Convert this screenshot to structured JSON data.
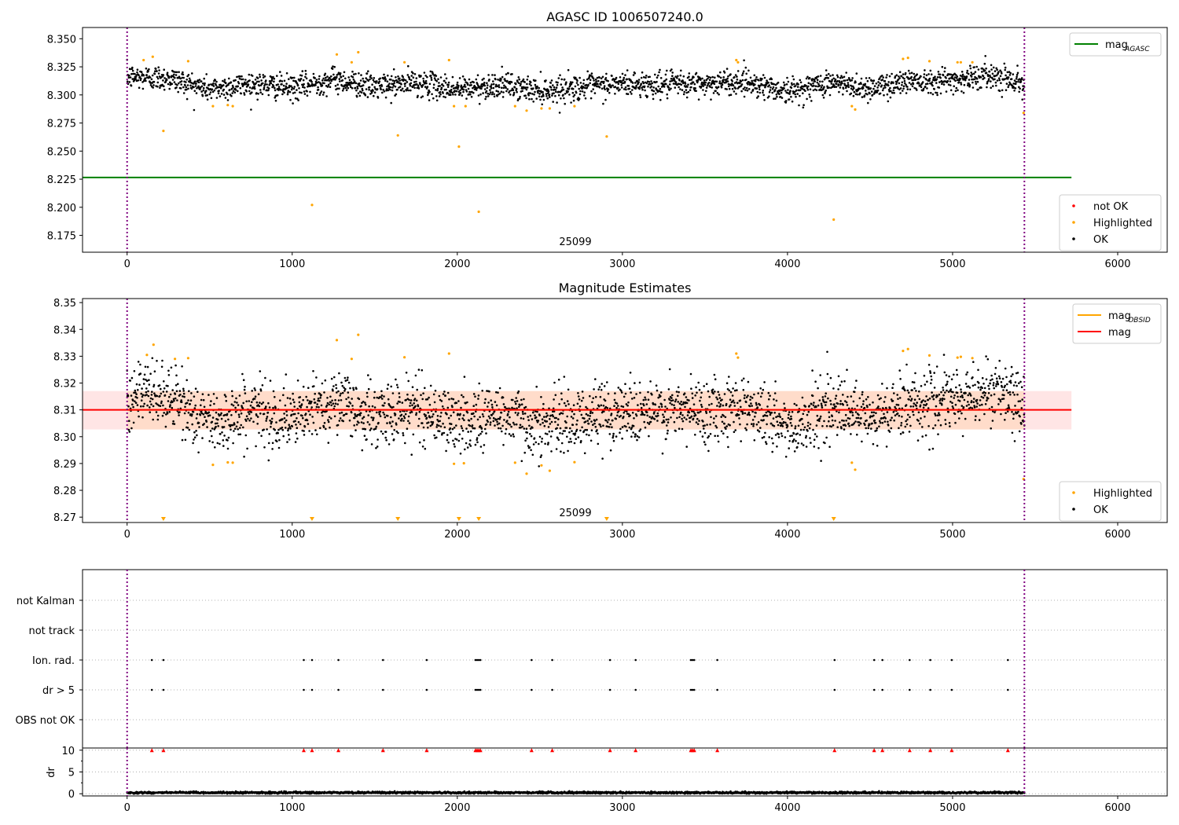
{
  "chart_data": [
    {
      "type": "scatter",
      "title": "AGASC ID 1006507240.0",
      "xlabel": "",
      "ylabel": "",
      "xlim": [
        -270,
        6300
      ],
      "ylim": [
        8.16,
        8.36
      ],
      "yticks": [
        8.175,
        8.2,
        8.225,
        8.25,
        8.275,
        8.3,
        8.325,
        8.35
      ],
      "ytick_labels": [
        "8.175",
        "8.200",
        "8.225",
        "8.250",
        "8.275",
        "8.300",
        "8.325",
        "8.350"
      ],
      "xticks": [
        0,
        1000,
        2000,
        3000,
        4000,
        5000,
        6000
      ],
      "xtick_labels": [
        "0",
        "1000",
        "2000",
        "3000",
        "4000",
        "5000",
        "6000"
      ],
      "obsid_label": {
        "text": "25099",
        "x": 2714
      },
      "obs_bounds": [
        0,
        5435
      ],
      "lines": [
        {
          "name": "mag",
          "sub": "AGASC",
          "color": "#008000",
          "y": 8.2265,
          "x": [
            -270,
            5720
          ]
        }
      ],
      "scatter_series": [
        {
          "name": "not OK",
          "color": "#ff0000"
        },
        {
          "name": "Highlighted",
          "color": "#ffa500"
        },
        {
          "name": "OK",
          "color": "#000000"
        }
      ],
      "ok_trend": {
        "x": [
          0,
          250,
          500,
          750,
          1000,
          1250,
          1500,
          1750,
          2000,
          2250,
          2500,
          2750,
          3000,
          3250,
          3500,
          3750,
          4000,
          4250,
          4500,
          4750,
          5000,
          5250,
          5435
        ],
        "y": [
          8.316,
          8.315,
          8.305,
          8.31,
          8.306,
          8.314,
          8.307,
          8.311,
          8.305,
          8.309,
          8.304,
          8.307,
          8.31,
          8.309,
          8.31,
          8.312,
          8.303,
          8.311,
          8.306,
          8.313,
          8.313,
          8.318,
          8.31
        ],
        "spread": 0.0055,
        "n": 2600
      },
      "highlighted_points": {
        "x": [
          100,
          155,
          220,
          370,
          520,
          610,
          640,
          1120,
          1270,
          1360,
          1400,
          1640,
          1680,
          1950,
          1980,
          2010,
          2050,
          2130,
          2350,
          2420,
          2510,
          2560,
          2710,
          2905,
          3690,
          3700,
          4280,
          4390,
          4410,
          4700,
          4730,
          4860,
          5030,
          5050,
          5120,
          5430
        ],
        "y": [
          8.331,
          8.334,
          8.268,
          8.33,
          8.29,
          8.291,
          8.29,
          8.202,
          8.336,
          8.329,
          8.338,
          8.264,
          8.329,
          8.331,
          8.29,
          8.254,
          8.29,
          8.196,
          8.29,
          8.286,
          8.288,
          8.288,
          8.29,
          8.263,
          8.331,
          8.329,
          8.189,
          8.29,
          8.287,
          8.332,
          8.333,
          8.33,
          8.329,
          8.329,
          8.329,
          8.284
        ]
      },
      "legends": [
        {
          "placement": "top-right",
          "entries": [
            {
              "label": "mag",
              "sub": "AGASC",
              "color": "#008000",
              "marker": "line"
            }
          ]
        },
        {
          "placement": "lower-right",
          "entries": [
            {
              "label": "not OK",
              "color": "#ff0000",
              "marker": "dot"
            },
            {
              "label": "Highlighted",
              "color": "#ffa500",
              "marker": "dot"
            },
            {
              "label": "OK",
              "color": "#000000",
              "marker": "dot"
            }
          ]
        }
      ]
    },
    {
      "type": "scatter",
      "title": "Magnitude Estimates",
      "xlabel": "",
      "ylabel": "",
      "xlim": [
        -270,
        6300
      ],
      "ylim": [
        8.268,
        8.3515
      ],
      "yticks": [
        8.27,
        8.28,
        8.29,
        8.3,
        8.31,
        8.32,
        8.33,
        8.34,
        8.35
      ],
      "ytick_labels": [
        "8.27",
        "8.28",
        "8.29",
        "8.30",
        "8.31",
        "8.32",
        "8.33",
        "8.34",
        "8.35"
      ],
      "xticks": [
        0,
        1000,
        2000,
        3000,
        4000,
        5000,
        6000
      ],
      "xtick_labels": [
        "0",
        "1000",
        "2000",
        "3000",
        "4000",
        "5000",
        "6000"
      ],
      "obsid_label": {
        "text": "25099",
        "x": 2714
      },
      "obs_bounds": [
        0,
        5435
      ],
      "band": {
        "color": "#ff9999",
        "y0": 8.3027,
        "y1": 8.317,
        "x": [
          -270,
          5720
        ]
      },
      "band_obsid": {
        "color": "#ffcc99",
        "y0": 8.3027,
        "y1": 8.317,
        "x": [
          0,
          5435
        ]
      },
      "lines": [
        {
          "name": "mag",
          "sub": "OBSID",
          "color": "#ffa500",
          "y": 8.31,
          "x": [
            0,
            5435
          ]
        },
        {
          "name": "mag",
          "color": "#ff0000",
          "y": 8.31,
          "x": [
            -270,
            5720
          ]
        }
      ],
      "ok_trend": {
        "x": [
          0,
          250,
          500,
          750,
          1000,
          1250,
          1500,
          1750,
          2000,
          2250,
          2500,
          2750,
          3000,
          3250,
          3500,
          3750,
          4000,
          4250,
          4500,
          4750,
          5000,
          5250,
          5435
        ],
        "y": [
          8.316,
          8.315,
          8.305,
          8.31,
          8.306,
          8.314,
          8.307,
          8.311,
          8.305,
          8.309,
          8.304,
          8.307,
          8.31,
          8.309,
          8.31,
          8.312,
          8.303,
          8.311,
          8.306,
          8.313,
          8.313,
          8.318,
          8.31
        ],
        "spread": 0.0055,
        "n": 2600
      },
      "highlighted_points": {
        "x": [
          120,
          160,
          290,
          370,
          520,
          610,
          640,
          1270,
          1360,
          1400,
          1680,
          1950,
          1980,
          2040,
          2350,
          2420,
          2510,
          2560,
          2710,
          3690,
          3700,
          4390,
          4410,
          4700,
          4730,
          4860,
          5030,
          5050,
          5120,
          5430
        ],
        "y": [
          8.3305,
          8.3343,
          8.329,
          8.3293,
          8.2895,
          8.2904,
          8.2903,
          8.336,
          8.329,
          8.338,
          8.3296,
          8.331,
          8.2899,
          8.2901,
          8.2903,
          8.2862,
          8.2893,
          8.2873,
          8.2905,
          8.331,
          8.3295,
          8.2903,
          8.2877,
          8.332,
          8.3327,
          8.3303,
          8.3295,
          8.3298,
          8.3293,
          8.2842
        ]
      },
      "clipped_points": {
        "x": [
          220,
          1120,
          1640,
          2010,
          2130,
          2905,
          4280
        ],
        "color": "#ffa500",
        "marker": "triangle-down"
      },
      "legends": [
        {
          "placement": "top-right",
          "entries": [
            {
              "label": "mag",
              "sub": "OBSID",
              "color": "#ffa500",
              "marker": "line"
            },
            {
              "label": "mag",
              "color": "#ff0000",
              "marker": "line"
            }
          ]
        },
        {
          "placement": "lower-right",
          "entries": [
            {
              "label": "Highlighted",
              "color": "#ffa500",
              "marker": "dot"
            },
            {
              "label": "OK",
              "color": "#000000",
              "marker": "dot"
            }
          ]
        }
      ]
    },
    {
      "type": "scatter",
      "title": "",
      "xlabel": "",
      "ylabel": "",
      "xlim": [
        -270,
        6300
      ],
      "categories": [
        "not Kalman",
        "not track",
        "Ion. rad.",
        "dr > 5",
        "OBS not OK"
      ],
      "grid": "dotted",
      "obs_bounds": [
        0,
        5435
      ],
      "flag_x": [
        150,
        220,
        1070,
        1120,
        1280,
        1550,
        1815,
        2110,
        2120,
        2130,
        2140,
        2450,
        2575,
        2925,
        3080,
        3415,
        3425,
        3435,
        3575,
        4285,
        4525,
        4575,
        4740,
        4865,
        4995,
        5335
      ],
      "flag_rows": [
        "Ion. rad.",
        "dr > 5"
      ],
      "dr": {
        "ylabel": "dr",
        "ylim": [
          -0.5,
          10.5
        ],
        "yticks": [
          0,
          5,
          10
        ],
        "ytick_labels": [
          "0",
          "5",
          "10"
        ],
        "clipped_color": "#ff0000",
        "clipped_y": 10,
        "baseline_mean": 0.25,
        "baseline_spread": 0.2,
        "n": 2600
      },
      "xticks": [
        0,
        1000,
        2000,
        3000,
        4000,
        5000,
        6000
      ],
      "xtick_labels": [
        "0",
        "1000",
        "2000",
        "3000",
        "4000",
        "5000",
        "6000"
      ]
    }
  ]
}
